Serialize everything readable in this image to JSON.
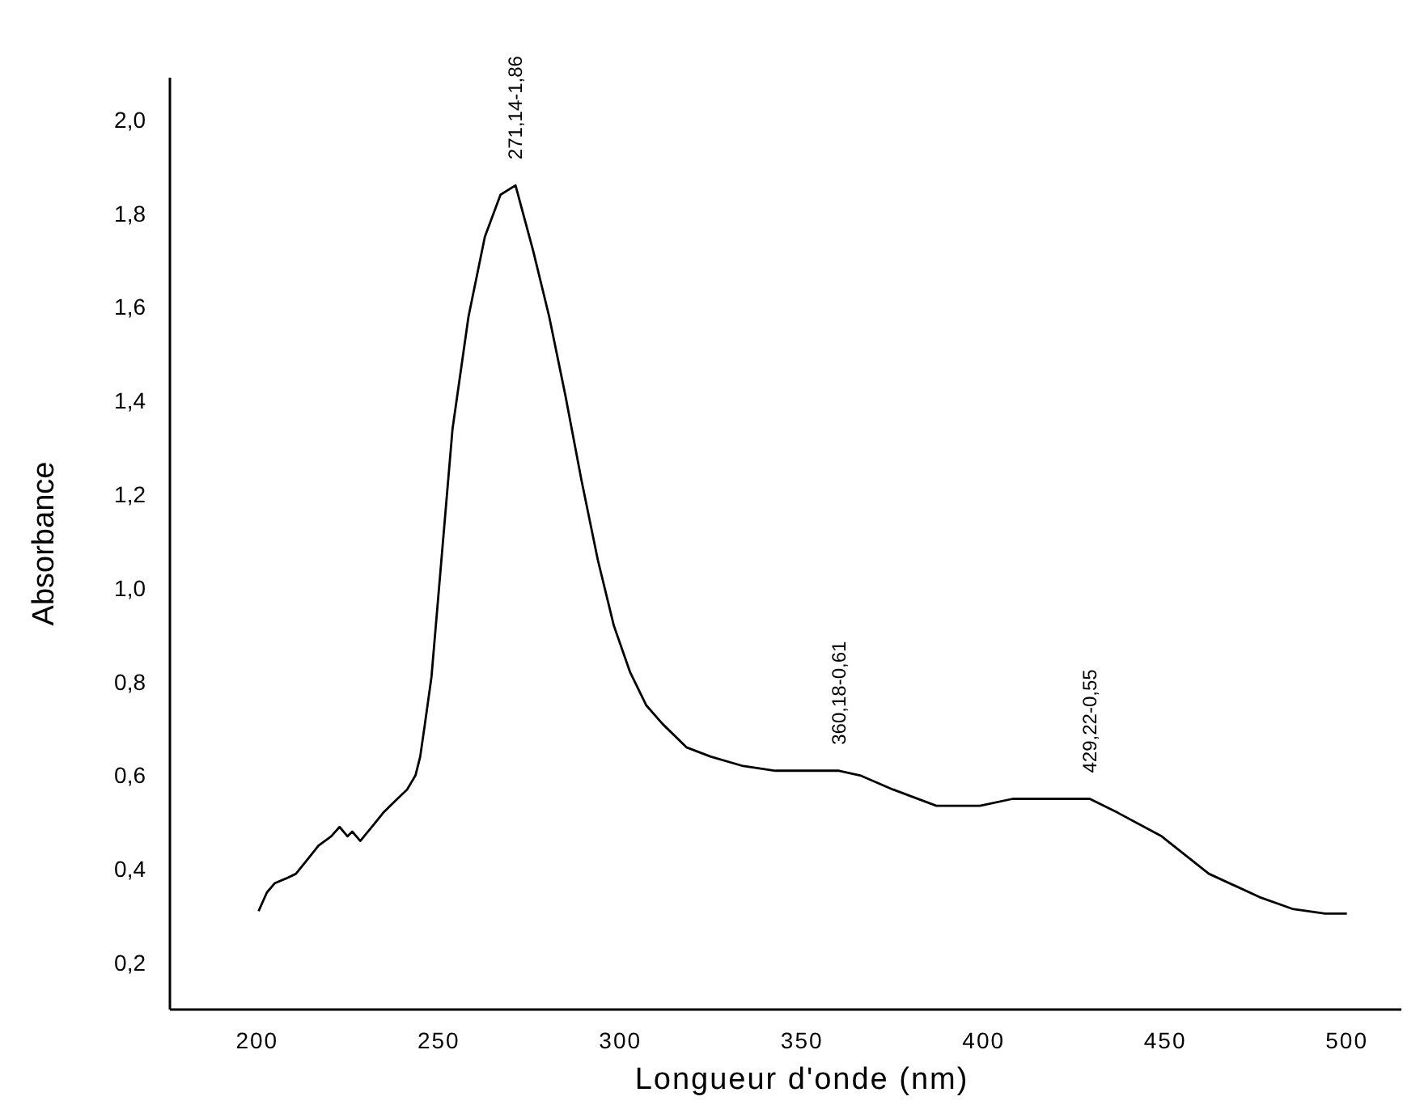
{
  "chart_data": {
    "type": "line",
    "xlabel": "Longueur d'onde (nm)",
    "ylabel": "Absorbance",
    "xlim": [
      176,
      515
    ],
    "ylim": [
      0.1,
      2.09
    ],
    "xticks": [
      200,
      250,
      300,
      350,
      400,
      450,
      500
    ],
    "yticks": [
      {
        "value": 0.2,
        "label": "0,2"
      },
      {
        "value": 0.4,
        "label": "0,4"
      },
      {
        "value": 0.6,
        "label": "0,6"
      },
      {
        "value": 0.8,
        "label": "0,8"
      },
      {
        "value": 1.0,
        "label": "1,0"
      },
      {
        "value": 1.2,
        "label": "1,2"
      },
      {
        "value": 1.4,
        "label": "1,4"
      },
      {
        "value": 1.6,
        "label": "1,6"
      },
      {
        "value": 1.8,
        "label": "1,8"
      },
      {
        "value": 2.0,
        "label": "2,0"
      }
    ],
    "grid": false,
    "marker": "none",
    "line_style": "solid",
    "series": [
      {
        "color": "#000000",
        "x": [
          200.4,
          202.7,
          204.9,
          208,
          210.7,
          213.8,
          216.9,
          220.4,
          222.7,
          224.9,
          226.2,
          228.4,
          231.6,
          234.7,
          237.3,
          241.3,
          243.6,
          244.9,
          246.2,
          248,
          253.8,
          258.2,
          262.7,
          267,
          271.14,
          276,
          280.4,
          284.9,
          289.3,
          293.8,
          298.2,
          302.7,
          307.1,
          311.6,
          318.2,
          324.9,
          333.8,
          342.7,
          352,
          360.18,
          366,
          375,
          387,
          399,
          408,
          418,
          429.22,
          437,
          449,
          462,
          476,
          485,
          494,
          500
        ],
        "values": [
          0.31,
          0.35,
          0.37,
          0.38,
          0.39,
          0.42,
          0.45,
          0.47,
          0.49,
          0.47,
          0.48,
          0.46,
          0.49,
          0.52,
          0.54,
          0.57,
          0.6,
          0.64,
          0.71,
          0.81,
          1.34,
          1.58,
          1.75,
          1.84,
          1.86,
          1.72,
          1.58,
          1.41,
          1.23,
          1.06,
          0.92,
          0.82,
          0.75,
          0.71,
          0.66,
          0.64,
          0.62,
          0.61,
          0.61,
          0.61,
          0.6,
          0.57,
          0.535,
          0.535,
          0.55,
          0.55,
          0.55,
          0.52,
          0.47,
          0.39,
          0.34,
          0.315,
          0.305,
          0.305
        ]
      }
    ],
    "annotations": [
      {
        "text": "271,14-1,86",
        "x": 271.14,
        "y": 1.86
      },
      {
        "text": "360,18-0,61",
        "x": 360.18,
        "y": 0.61
      },
      {
        "text": "429,22-0,55",
        "x": 429.22,
        "y": 0.55
      }
    ]
  }
}
